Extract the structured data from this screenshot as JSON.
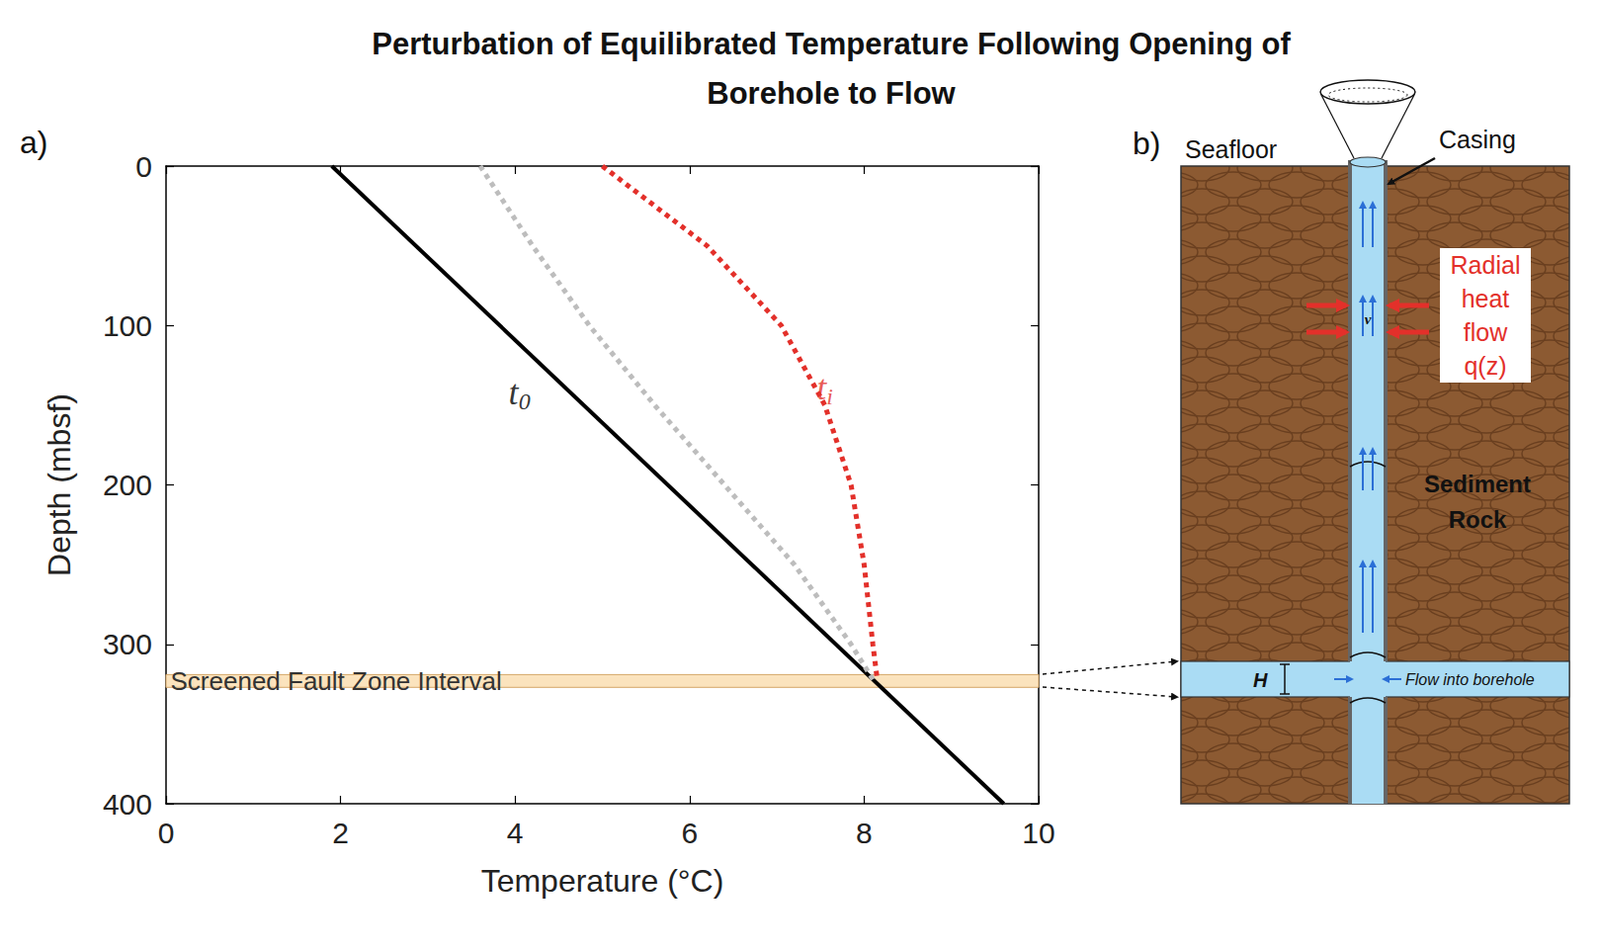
{
  "chart_data": {
    "type": "line",
    "title": "Perturbation of Equilibrated Temperature Following Opening of\nBorehole to Flow",
    "panel_label": "a)",
    "x_label": "Temperature (°C)",
    "y_label": "Depth (mbsf)",
    "xlim": [
      0,
      10
    ],
    "ylim": [
      400,
      0
    ],
    "xticks": [
      0,
      2,
      4,
      6,
      8,
      10
    ],
    "yticks": [
      0,
      100,
      200,
      300,
      400
    ],
    "grid": false,
    "series": [
      {
        "color": "#000000",
        "line_style": "solid",
        "x": [
          1.9,
          9.6
        ],
        "y": [
          0,
          400
        ],
        "label": {
          "text": "t",
          "subscript": "0",
          "x": 4.05,
          "y": 142
        }
      },
      {
        "color": "#bdbdbd",
        "line_style": "dotted",
        "x": [
          3.6,
          4.2,
          4.85,
          5.6,
          6.4,
          7.2,
          7.85,
          8.1
        ],
        "y": [
          0,
          50,
          100,
          150,
          200,
          250,
          300,
          322
        ]
      },
      {
        "color": "#e3302a",
        "line_style": "dotted",
        "x": [
          5.0,
          6.2,
          7.05,
          7.55,
          7.85,
          8.0,
          8.1,
          8.15
        ],
        "y": [
          0,
          50,
          100,
          150,
          200,
          250,
          300,
          322
        ],
        "label": {
          "text": "t",
          "subscript": "i",
          "x": 7.55,
          "y": 139
        }
      }
    ],
    "shaded_band": {
      "text": "Screened Fault Zone Interval",
      "y": [
        319,
        327
      ],
      "color": "#fbe3bd"
    }
  },
  "diagram": {
    "panel_label": "b)",
    "seafloor": "Seafloor",
    "casing": "Casing",
    "heat_flow": [
      "Radial",
      "heat",
      "flow",
      "q(z)"
    ],
    "velocity": "v",
    "formation": [
      "Sediment",
      "Rock"
    ],
    "layer_thickness": "H",
    "inflow": "Flow into borehole"
  }
}
